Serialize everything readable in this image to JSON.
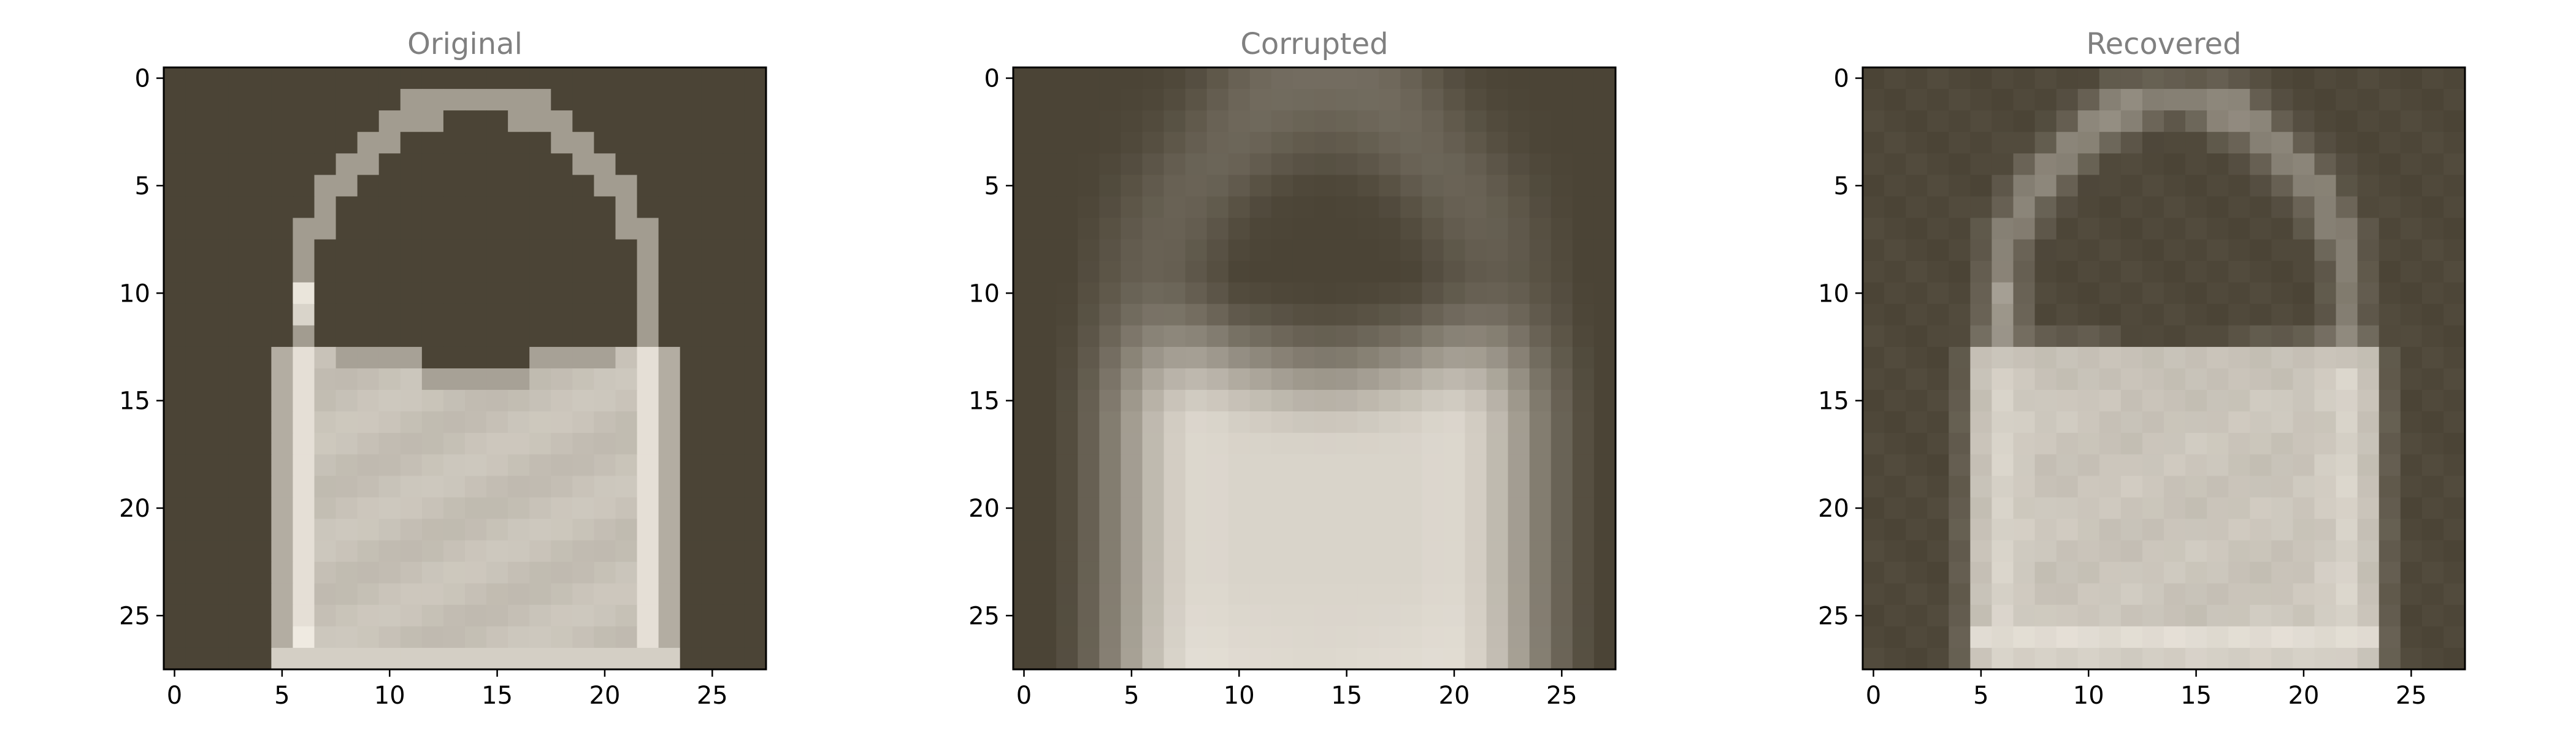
{
  "figure": {
    "background": "#ffffff",
    "title_color": "#808080",
    "axis_color": "#000000",
    "colormap": {
      "low": "#4b4436",
      "high": "#f2ede4"
    }
  },
  "chart_data": [
    {
      "type": "heatmap",
      "title": "Original",
      "xlabel": "",
      "ylabel": "",
      "shape": [
        28,
        28
      ],
      "xlim": [
        -0.5,
        27.5
      ],
      "ylim": [
        27.5,
        -0.5
      ],
      "xticks": [
        0,
        5,
        10,
        15,
        20,
        25
      ],
      "yticks": [
        0,
        5,
        10,
        15,
        20,
        25
      ],
      "grid": false,
      "description_values": "intensity 0-1, bag shape with handle arc rows 0-12 and body rows 13-27, cols 5-23"
    },
    {
      "type": "heatmap",
      "title": "Corrupted",
      "xlabel": "",
      "ylabel": "",
      "shape": [
        28,
        28
      ],
      "xlim": [
        -0.5,
        27.5
      ],
      "ylim": [
        27.5,
        -0.5
      ],
      "xticks": [
        0,
        5,
        10,
        15,
        20,
        25
      ],
      "yticks": [
        0,
        5,
        10,
        15,
        20,
        25
      ],
      "grid": false
    },
    {
      "type": "heatmap",
      "title": "Recovered",
      "xlabel": "",
      "ylabel": "",
      "shape": [
        28,
        28
      ],
      "xlim": [
        -0.5,
        27.5
      ],
      "ylim": [
        27.5,
        -0.5
      ],
      "xticks": [
        0,
        5,
        10,
        15,
        20,
        25
      ],
      "yticks": [
        0,
        5,
        10,
        15,
        20,
        25
      ],
      "grid": false
    }
  ]
}
